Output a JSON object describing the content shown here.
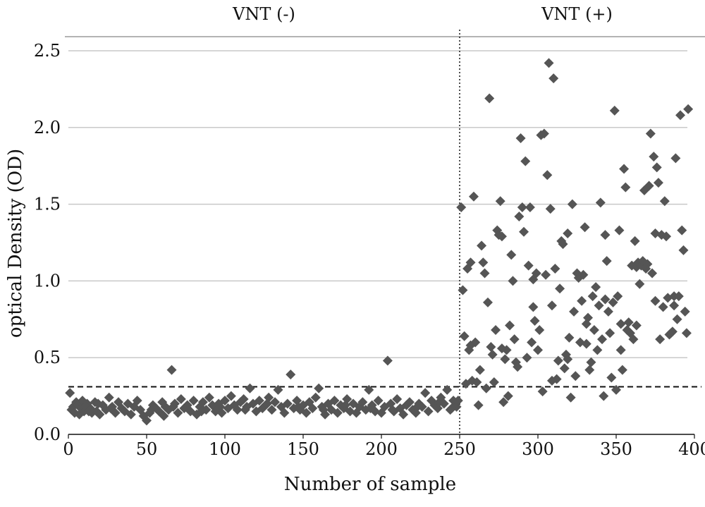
{
  "chart_data": {
    "type": "scatter",
    "xlabel": "Number of sample",
    "ylabel": "optical Density (OD)",
    "xlim": [
      0,
      400
    ],
    "ylim": [
      0,
      2.5
    ],
    "x_ticks": [
      "0",
      "50",
      "100",
      "150",
      "200",
      "250",
      "300",
      "350",
      "400"
    ],
    "y_ticks": [
      "0.0",
      "0.5",
      "1.0",
      "1.5",
      "2.0",
      "2.5"
    ],
    "grid": "horizontal",
    "colors": {
      "marker": "#555555",
      "grid": "#c9c9c9",
      "text": "#111111"
    },
    "marker_shape": "diamond",
    "group_labels": [
      {
        "label": "VNT (-)",
        "x_center": 125
      },
      {
        "label": "VNT (+)",
        "x_center": 325
      }
    ],
    "group_divider_x": 250,
    "cutoff_y": 0.31,
    "series": [
      {
        "points": [
          [
            1,
            0.27
          ],
          [
            2,
            0.16
          ],
          [
            3,
            0.18
          ],
          [
            4,
            0.14
          ],
          [
            5,
            0.21
          ],
          [
            6,
            0.19
          ],
          [
            7,
            0.13
          ],
          [
            8,
            0.17
          ],
          [
            9,
            0.22
          ],
          [
            10,
            0.15
          ],
          [
            12,
            0.2
          ],
          [
            14,
            0.17
          ],
          [
            15,
            0.14
          ],
          [
            17,
            0.21
          ],
          [
            18,
            0.15
          ],
          [
            20,
            0.13
          ],
          [
            22,
            0.19
          ],
          [
            24,
            0.16
          ],
          [
            26,
            0.24
          ],
          [
            28,
            0.18
          ],
          [
            30,
            0.14
          ],
          [
            32,
            0.21
          ],
          [
            34,
            0.17
          ],
          [
            36,
            0.15
          ],
          [
            38,
            0.2
          ],
          [
            40,
            0.13
          ],
          [
            42,
            0.18
          ],
          [
            44,
            0.22
          ],
          [
            46,
            0.16
          ],
          [
            48,
            0.12
          ],
          [
            50,
            0.09
          ],
          [
            52,
            0.14
          ],
          [
            54,
            0.19
          ],
          [
            56,
            0.17
          ],
          [
            58,
            0.15
          ],
          [
            60,
            0.21
          ],
          [
            62,
            0.18
          ],
          [
            64,
            0.16
          ],
          [
            66,
            0.42
          ],
          [
            68,
            0.2
          ],
          [
            70,
            0.14
          ],
          [
            72,
            0.23
          ],
          [
            74,
            0.17
          ],
          [
            76,
            0.19
          ],
          [
            78,
            0.15
          ],
          [
            80,
            0.22
          ],
          [
            82,
            0.13
          ],
          [
            84,
            0.18
          ],
          [
            86,
            0.21
          ],
          [
            88,
            0.16
          ],
          [
            90,
            0.24
          ],
          [
            92,
            0.19
          ],
          [
            94,
            0.15
          ],
          [
            96,
            0.2
          ],
          [
            98,
            0.14
          ],
          [
            100,
            0.22
          ],
          [
            102,
            0.17
          ],
          [
            104,
            0.25
          ],
          [
            106,
            0.19
          ],
          [
            108,
            0.16
          ],
          [
            110,
            0.21
          ],
          [
            112,
            0.23
          ],
          [
            114,
            0.18
          ],
          [
            116,
            0.3
          ],
          [
            118,
            0.2
          ],
          [
            120,
            0.15
          ],
          [
            122,
            0.22
          ],
          [
            124,
            0.17
          ],
          [
            126,
            0.19
          ],
          [
            128,
            0.24
          ],
          [
            130,
            0.16
          ],
          [
            132,
            0.21
          ],
          [
            134,
            0.29
          ],
          [
            136,
            0.18
          ],
          [
            138,
            0.14
          ],
          [
            140,
            0.2
          ],
          [
            142,
            0.39
          ],
          [
            144,
            0.17
          ],
          [
            146,
            0.22
          ],
          [
            148,
            0.16
          ],
          [
            150,
            0.19
          ],
          [
            152,
            0.14
          ],
          [
            154,
            0.21
          ],
          [
            156,
            0.17
          ],
          [
            158,
            0.24
          ],
          [
            160,
            0.3
          ],
          [
            162,
            0.18
          ],
          [
            164,
            0.13
          ],
          [
            166,
            0.2
          ],
          [
            168,
            0.16
          ],
          [
            170,
            0.22
          ],
          [
            172,
            0.14
          ],
          [
            174,
            0.19
          ],
          [
            176,
            0.17
          ],
          [
            178,
            0.23
          ],
          [
            180,
            0.15
          ],
          [
            182,
            0.2
          ],
          [
            184,
            0.14
          ],
          [
            186,
            0.18
          ],
          [
            188,
            0.21
          ],
          [
            190,
            0.16
          ],
          [
            192,
            0.29
          ],
          [
            194,
            0.19
          ],
          [
            196,
            0.15
          ],
          [
            198,
            0.22
          ],
          [
            200,
            0.14
          ],
          [
            202,
            0.18
          ],
          [
            204,
            0.48
          ],
          [
            206,
            0.2
          ],
          [
            208,
            0.15
          ],
          [
            210,
            0.23
          ],
          [
            212,
            0.17
          ],
          [
            214,
            0.13
          ],
          [
            216,
            0.19
          ],
          [
            218,
            0.21
          ],
          [
            220,
            0.16
          ],
          [
            222,
            0.14
          ],
          [
            224,
            0.2
          ],
          [
            226,
            0.18
          ],
          [
            228,
            0.27
          ],
          [
            230,
            0.15
          ],
          [
            232,
            0.22
          ],
          [
            234,
            0.19
          ],
          [
            236,
            0.17
          ],
          [
            238,
            0.24
          ],
          [
            240,
            0.2
          ],
          [
            242,
            0.29
          ],
          [
            244,
            0.16
          ],
          [
            246,
            0.22
          ],
          [
            248,
            0.18
          ],
          [
            249,
            0.22
          ],
          [
            11,
            0.18
          ],
          [
            13,
            0.15
          ],
          [
            19,
            0.2
          ],
          [
            27,
            0.17
          ],
          [
            53,
            0.16
          ],
          [
            67,
            0.18
          ],
          [
            85,
            0.15
          ],
          [
            97,
            0.18
          ],
          [
            113,
            0.16
          ],
          [
            127,
            0.2
          ],
          [
            147,
            0.18
          ],
          [
            163,
            0.16
          ],
          [
            177,
            0.19
          ],
          [
            193,
            0.17
          ],
          [
            207,
            0.16
          ],
          [
            223,
            0.18
          ],
          [
            237,
            0.21
          ],
          [
            245,
            0.17
          ],
          [
            61,
            0.12
          ],
          [
            251,
            1.48
          ],
          [
            252,
            0.94
          ],
          [
            253,
            0.64
          ],
          [
            254,
            0.33
          ],
          [
            255,
            1.08
          ],
          [
            256,
            0.55
          ],
          [
            257,
            1.12
          ],
          [
            258,
            0.35
          ],
          [
            259,
            1.55
          ],
          [
            260,
            0.6
          ],
          [
            262,
            0.19
          ],
          [
            263,
            0.42
          ],
          [
            264,
            1.23
          ],
          [
            265,
            1.12
          ],
          [
            266,
            1.05
          ],
          [
            267,
            0.3
          ],
          [
            268,
            0.86
          ],
          [
            269,
            2.19
          ],
          [
            270,
            0.57
          ],
          [
            271,
            0.52
          ],
          [
            272,
            0.34
          ],
          [
            273,
            0.68
          ],
          [
            274,
            1.33
          ],
          [
            275,
            1.3
          ],
          [
            276,
            1.52
          ],
          [
            277,
            1.29
          ],
          [
            278,
            0.21
          ],
          [
            279,
            0.49
          ],
          [
            280,
            0.55
          ],
          [
            281,
            0.25
          ],
          [
            282,
            0.71
          ],
          [
            283,
            1.17
          ],
          [
            284,
            1.0
          ],
          [
            285,
            0.62
          ],
          [
            286,
            0.47
          ],
          [
            287,
            0.44
          ],
          [
            288,
            1.42
          ],
          [
            289,
            1.93
          ],
          [
            290,
            1.48
          ],
          [
            291,
            1.32
          ],
          [
            292,
            1.78
          ],
          [
            293,
            0.5
          ],
          [
            294,
            1.1
          ],
          [
            295,
            1.48
          ],
          [
            296,
            0.6
          ],
          [
            297,
            1.01
          ],
          [
            298,
            0.74
          ],
          [
            299,
            1.05
          ],
          [
            300,
            0.55
          ],
          [
            301,
            0.68
          ],
          [
            302,
            1.95
          ],
          [
            303,
            0.28
          ],
          [
            304,
            1.96
          ],
          [
            305,
            1.04
          ],
          [
            306,
            1.69
          ],
          [
            307,
            2.42
          ],
          [
            308,
            1.47
          ],
          [
            309,
            0.84
          ],
          [
            310,
            2.32
          ],
          [
            311,
            1.08
          ],
          [
            312,
            0.36
          ],
          [
            313,
            0.48
          ],
          [
            314,
            0.95
          ],
          [
            315,
            1.26
          ],
          [
            316,
            1.24
          ],
          [
            317,
            0.43
          ],
          [
            318,
            0.52
          ],
          [
            319,
            1.31
          ],
          [
            320,
            0.63
          ],
          [
            321,
            0.24
          ],
          [
            322,
            1.5
          ],
          [
            323,
            0.8
          ],
          [
            324,
            0.38
          ],
          [
            325,
            1.05
          ],
          [
            326,
            1.02
          ],
          [
            327,
            0.6
          ],
          [
            328,
            0.87
          ],
          [
            329,
            1.04
          ],
          [
            330,
            1.35
          ],
          [
            331,
            0.72
          ],
          [
            332,
            0.76
          ],
          [
            333,
            0.42
          ],
          [
            334,
            0.47
          ],
          [
            335,
            0.9
          ],
          [
            336,
            0.68
          ],
          [
            337,
            0.96
          ],
          [
            338,
            0.55
          ],
          [
            339,
            0.84
          ],
          [
            340,
            1.51
          ],
          [
            341,
            0.62
          ],
          [
            342,
            0.25
          ],
          [
            343,
            1.3
          ],
          [
            344,
            1.13
          ],
          [
            345,
            0.8
          ],
          [
            346,
            0.66
          ],
          [
            347,
            0.37
          ],
          [
            348,
            0.86
          ],
          [
            349,
            2.11
          ],
          [
            350,
            0.29
          ],
          [
            351,
            0.9
          ],
          [
            352,
            1.33
          ],
          [
            353,
            0.72
          ],
          [
            354,
            0.42
          ],
          [
            355,
            1.73
          ],
          [
            356,
            1.61
          ],
          [
            357,
            0.68
          ],
          [
            358,
            0.73
          ],
          [
            359,
            0.66
          ],
          [
            360,
            1.1
          ],
          [
            361,
            0.62
          ],
          [
            362,
            1.26
          ],
          [
            363,
            1.09
          ],
          [
            364,
            1.12
          ],
          [
            365,
            0.98
          ],
          [
            366,
            1.1
          ],
          [
            367,
            1.13
          ],
          [
            368,
            1.59
          ],
          [
            369,
            1.08
          ],
          [
            370,
            1.11
          ],
          [
            371,
            1.62
          ],
          [
            372,
            1.96
          ],
          [
            373,
            1.05
          ],
          [
            374,
            1.81
          ],
          [
            375,
            0.87
          ],
          [
            376,
            1.74
          ],
          [
            377,
            1.64
          ],
          [
            378,
            0.62
          ],
          [
            379,
            1.3
          ],
          [
            380,
            0.83
          ],
          [
            381,
            1.52
          ],
          [
            382,
            1.29
          ],
          [
            383,
            0.89
          ],
          [
            384,
            0.65
          ],
          [
            385,
            0.66
          ],
          [
            386,
            0.67
          ],
          [
            387,
            0.9
          ],
          [
            388,
            1.8
          ],
          [
            389,
            0.75
          ],
          [
            390,
            0.9
          ],
          [
            391,
            2.08
          ],
          [
            392,
            1.33
          ],
          [
            393,
            1.2
          ],
          [
            394,
            0.8
          ],
          [
            395,
            0.66
          ],
          [
            396,
            2.12
          ],
          [
            257,
            0.58
          ],
          [
            261,
            0.34
          ],
          [
            277,
            0.56
          ],
          [
            297,
            0.83
          ],
          [
            309,
            0.35
          ],
          [
            319,
            0.49
          ],
          [
            331,
            0.59
          ],
          [
            343,
            0.88
          ],
          [
            353,
            0.55
          ],
          [
            363,
            0.71
          ],
          [
            375,
            1.31
          ],
          [
            387,
            0.84
          ]
        ]
      }
    ]
  }
}
